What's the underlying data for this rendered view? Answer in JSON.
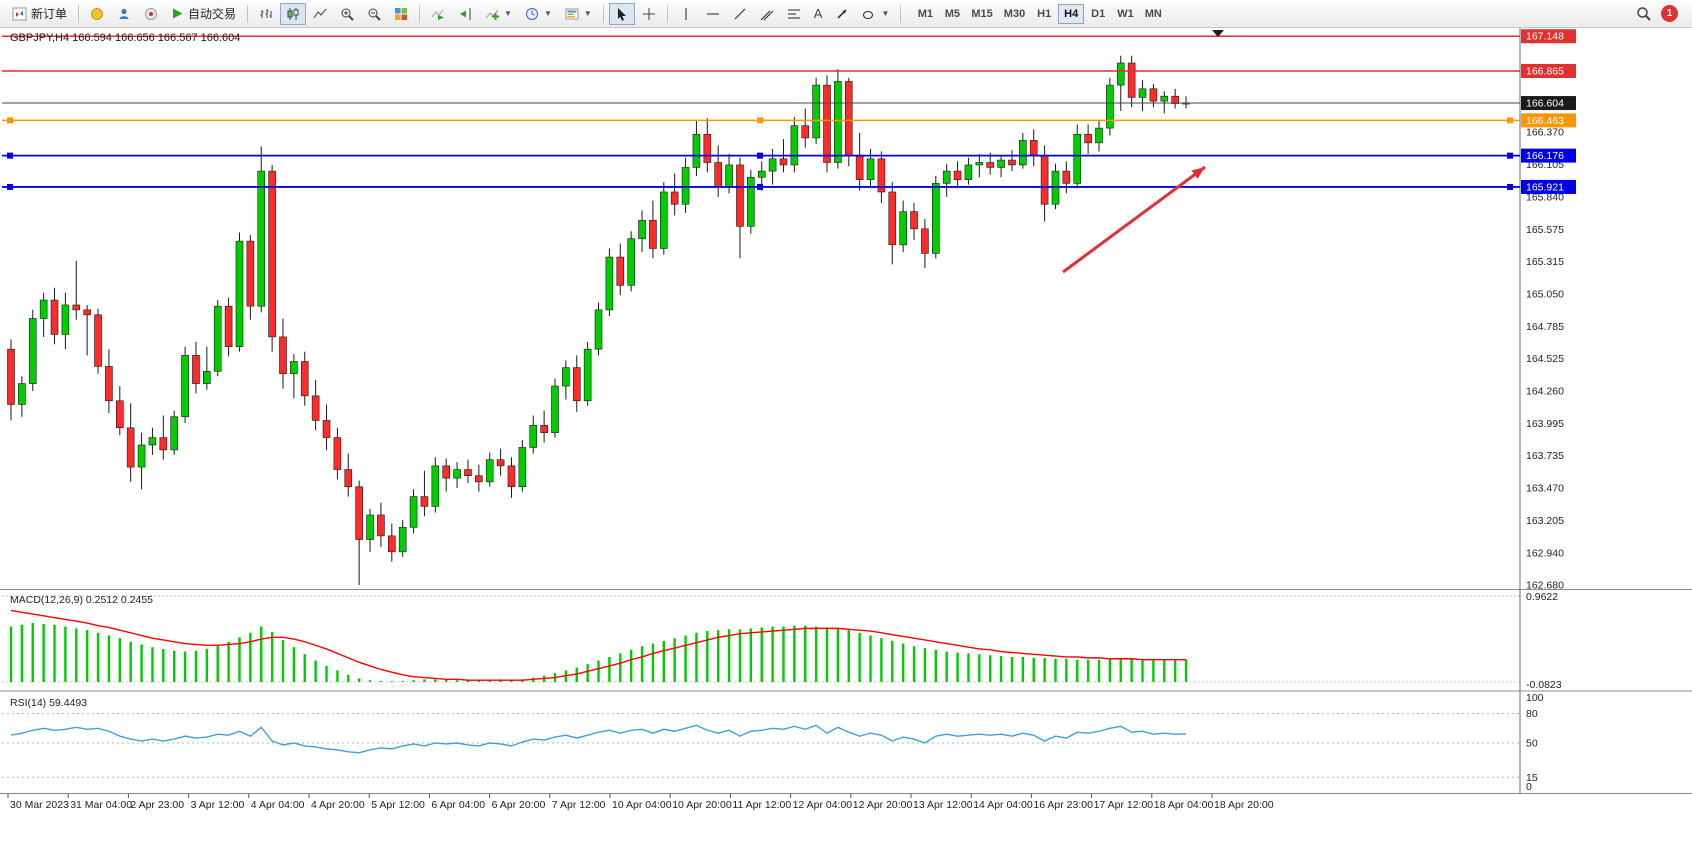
{
  "toolbar": {
    "new_order": "新订单",
    "autotrading": "自动交易",
    "timeframes": [
      "M1",
      "M5",
      "M15",
      "M30",
      "H1",
      "H4",
      "D1",
      "W1",
      "MN"
    ],
    "active_timeframe": "H4",
    "notification_count": "1"
  },
  "colors": {
    "up": "#00CE00",
    "down": "#FF2B2B",
    "candle_outline": "#1a1a1a",
    "macd_bar": "#00CC00",
    "macd_signal": "#FF0000",
    "rsi_line": "#3E9FDF",
    "line_red": "#E03131",
    "line_blue": "#0000E8",
    "line_orange": "#FF9500",
    "current_price": "#444444"
  },
  "chart_data": {
    "type": "candlestick",
    "symbol": "GBPJPY",
    "timeframe": "H4",
    "symbol_title": "GBPJPY,H4 166.594 166.656 166.567 166.604",
    "ohlc": {
      "open": "166.594",
      "high": "166.656",
      "low": "166.567",
      "close": "166.604"
    },
    "price_axis": [
      {
        "label": "166.370",
        "price": 166.37
      },
      {
        "label": "166.105",
        "price": 166.105
      },
      {
        "label": "165.840",
        "price": 165.84
      },
      {
        "label": "165.575",
        "price": 165.575
      },
      {
        "label": "165.315",
        "price": 165.315
      },
      {
        "label": "165.050",
        "price": 165.05
      },
      {
        "label": "164.785",
        "price": 164.785
      },
      {
        "label": "164.525",
        "price": 164.525
      },
      {
        "label": "164.260",
        "price": 164.26
      },
      {
        "label": "163.995",
        "price": 163.995
      },
      {
        "label": "163.735",
        "price": 163.735
      },
      {
        "label": "163.470",
        "price": 163.47
      },
      {
        "label": "163.205",
        "price": 163.205
      },
      {
        "label": "162.940",
        "price": 162.94
      },
      {
        "label": "162.680",
        "price": 162.68
      }
    ],
    "badges": [
      {
        "label": "167.148",
        "price": 167.148,
        "bg": "#E03131"
      },
      {
        "label": "166.865",
        "price": 166.865,
        "bg": "#E03131"
      },
      {
        "label": "166.604",
        "price": 166.604,
        "bg": "#1B1B1B"
      },
      {
        "label": "166.463",
        "price": 166.463,
        "bg": "#FF9500"
      },
      {
        "label": "166.176",
        "price": 166.176,
        "bg": "#0000E8"
      },
      {
        "label": "165.921",
        "price": 165.921,
        "bg": "#0000E8"
      }
    ],
    "hlines": [
      {
        "label": "167.148",
        "price": 167.148,
        "color": "#E03131",
        "width": 1.6,
        "handles": false
      },
      {
        "label": "166.865",
        "price": 166.865,
        "color": "#E03131",
        "width": 1.6,
        "handles": false
      },
      {
        "label": "166.604",
        "price": 166.604,
        "color": "#444444",
        "width": 1,
        "handles": false
      },
      {
        "label": "166.463",
        "price": 166.463,
        "color": "#FF9500",
        "width": 1.6,
        "handles": true
      },
      {
        "label": "166.176",
        "price": 166.176,
        "color": "#0000E8",
        "width": 1.8,
        "handles": true
      },
      {
        "label": "165.921",
        "price": 165.921,
        "color": "#0000E8",
        "width": 1.8,
        "handles": true
      }
    ],
    "time_labels": [
      "30 Mar 2023",
      "31 Mar 04:00",
      "2 Apr 23:00",
      "3 Apr 12:00",
      "4 Apr 04:00",
      "4 Apr 20:00",
      "5 Apr 12:00",
      "6 Apr 04:00",
      "6 Apr 20:00",
      "7 Apr 12:00",
      "10 Apr 04:00",
      "10 Apr 20:00",
      "11 Apr 12:00",
      "12 Apr 04:00",
      "12 Apr 20:00",
      "13 Apr 12:00",
      "14 Apr 04:00",
      "16 Apr 23:00",
      "17 Apr 12:00",
      "18 Apr 04:00",
      "18 Apr 20:00"
    ],
    "candles": [
      [
        164.6,
        164.68,
        164.02,
        164.15
      ],
      [
        164.15,
        164.38,
        164.05,
        164.32
      ],
      [
        164.32,
        164.92,
        164.26,
        164.85
      ],
      [
        164.85,
        165.06,
        164.7,
        165.0
      ],
      [
        165.0,
        165.1,
        164.64,
        164.72
      ],
      [
        164.72,
        165.06,
        164.6,
        164.96
      ],
      [
        164.96,
        165.32,
        164.84,
        164.92
      ],
      [
        164.92,
        164.96,
        164.55,
        164.88
      ],
      [
        164.88,
        164.93,
        164.4,
        164.46
      ],
      [
        164.46,
        164.6,
        164.08,
        164.18
      ],
      [
        164.18,
        164.3,
        163.9,
        163.96
      ],
      [
        163.96,
        164.16,
        163.52,
        163.64
      ],
      [
        163.64,
        163.92,
        163.46,
        163.82
      ],
      [
        163.82,
        163.96,
        163.74,
        163.88
      ],
      [
        163.88,
        164.06,
        163.7,
        163.78
      ],
      [
        163.78,
        164.1,
        163.74,
        164.05
      ],
      [
        164.05,
        164.62,
        164.0,
        164.55
      ],
      [
        164.55,
        164.66,
        164.24,
        164.32
      ],
      [
        164.32,
        164.62,
        164.27,
        164.42
      ],
      [
        164.42,
        165.0,
        164.38,
        164.95
      ],
      [
        164.95,
        165.02,
        164.54,
        164.62
      ],
      [
        164.62,
        165.55,
        164.58,
        165.48
      ],
      [
        165.48,
        165.53,
        164.84,
        164.95
      ],
      [
        164.95,
        166.25,
        164.9,
        166.05
      ],
      [
        166.05,
        166.1,
        164.58,
        164.7
      ],
      [
        164.7,
        164.85,
        164.28,
        164.4
      ],
      [
        164.4,
        164.56,
        164.2,
        164.5
      ],
      [
        164.5,
        164.58,
        164.14,
        164.22
      ],
      [
        164.22,
        164.35,
        163.94,
        164.02
      ],
      [
        164.02,
        164.15,
        163.78,
        163.88
      ],
      [
        163.88,
        163.96,
        163.54,
        163.62
      ],
      [
        163.62,
        163.75,
        163.4,
        163.48
      ],
      [
        163.48,
        163.53,
        162.68,
        163.05
      ],
      [
        163.05,
        163.3,
        162.95,
        163.25
      ],
      [
        163.25,
        163.35,
        162.99,
        163.08
      ],
      [
        163.08,
        163.18,
        162.87,
        162.95
      ],
      [
        162.95,
        163.21,
        162.91,
        163.15
      ],
      [
        163.15,
        163.46,
        163.1,
        163.4
      ],
      [
        163.4,
        163.61,
        163.24,
        163.32
      ],
      [
        163.32,
        163.72,
        163.27,
        163.65
      ],
      [
        163.65,
        163.71,
        163.44,
        163.55
      ],
      [
        163.55,
        163.68,
        163.47,
        163.62
      ],
      [
        163.62,
        163.7,
        163.51,
        163.57
      ],
      [
        163.57,
        163.66,
        163.44,
        163.52
      ],
      [
        163.52,
        163.76,
        163.48,
        163.7
      ],
      [
        163.7,
        163.79,
        163.57,
        163.65
      ],
      [
        163.65,
        163.72,
        163.39,
        163.48
      ],
      [
        163.48,
        163.86,
        163.44,
        163.8
      ],
      [
        163.8,
        164.06,
        163.75,
        163.98
      ],
      [
        163.98,
        164.1,
        163.84,
        163.92
      ],
      [
        163.92,
        164.36,
        163.88,
        164.3
      ],
      [
        164.3,
        164.51,
        164.19,
        164.45
      ],
      [
        164.45,
        164.55,
        164.09,
        164.18
      ],
      [
        164.18,
        164.66,
        164.14,
        164.6
      ],
      [
        164.6,
        164.98,
        164.55,
        164.92
      ],
      [
        164.92,
        165.42,
        164.87,
        165.35
      ],
      [
        165.35,
        165.46,
        165.04,
        165.12
      ],
      [
        165.12,
        165.56,
        165.07,
        165.5
      ],
      [
        165.5,
        165.73,
        165.39,
        165.65
      ],
      [
        165.65,
        165.81,
        165.34,
        165.42
      ],
      [
        165.42,
        165.96,
        165.37,
        165.88
      ],
      [
        165.88,
        166.03,
        165.69,
        165.78
      ],
      [
        165.78,
        166.16,
        165.71,
        166.08
      ],
      [
        166.08,
        166.46,
        166.01,
        166.35
      ],
      [
        166.35,
        166.48,
        166.04,
        166.12
      ],
      [
        166.12,
        166.26,
        165.84,
        165.92
      ],
      [
        165.92,
        166.19,
        165.87,
        166.1
      ],
      [
        166.1,
        166.16,
        165.34,
        165.6
      ],
      [
        165.6,
        166.06,
        165.54,
        166.0
      ],
      [
        166.0,
        166.13,
        165.89,
        166.05
      ],
      [
        166.05,
        166.23,
        165.94,
        166.15
      ],
      [
        166.15,
        166.31,
        166.04,
        166.1
      ],
      [
        166.1,
        166.49,
        166.04,
        166.42
      ],
      [
        166.42,
        166.56,
        166.24,
        166.32
      ],
      [
        166.32,
        166.81,
        166.27,
        166.75
      ],
      [
        166.75,
        166.83,
        166.04,
        166.12
      ],
      [
        166.12,
        166.88,
        166.07,
        166.78
      ],
      [
        166.78,
        166.81,
        166.09,
        166.18
      ],
      [
        166.18,
        166.36,
        165.89,
        165.98
      ],
      [
        165.98,
        166.23,
        165.91,
        166.15
      ],
      [
        166.15,
        166.21,
        165.79,
        165.88
      ],
      [
        165.88,
        165.96,
        165.29,
        165.45
      ],
      [
        165.45,
        165.81,
        165.39,
        165.72
      ],
      [
        165.72,
        165.79,
        165.49,
        165.58
      ],
      [
        165.58,
        165.66,
        165.26,
        165.38
      ],
      [
        165.38,
        166.01,
        165.34,
        165.95
      ],
      [
        165.95,
        166.11,
        165.84,
        166.05
      ],
      [
        166.05,
        166.13,
        165.91,
        165.98
      ],
      [
        165.98,
        166.16,
        165.94,
        166.1
      ],
      [
        166.1,
        166.19,
        166.0,
        166.12
      ],
      [
        166.12,
        166.2,
        166.02,
        166.08
      ],
      [
        166.08,
        166.18,
        166.0,
        166.14
      ],
      [
        166.14,
        166.22,
        166.05,
        166.1
      ],
      [
        166.1,
        166.36,
        166.07,
        166.3
      ],
      [
        166.3,
        166.39,
        166.09,
        166.18
      ],
      [
        166.18,
        166.26,
        165.64,
        165.78
      ],
      [
        165.78,
        166.11,
        165.74,
        166.05
      ],
      [
        166.05,
        166.13,
        165.87,
        165.95
      ],
      [
        165.95,
        166.43,
        165.91,
        166.35
      ],
      [
        166.35,
        166.43,
        166.19,
        166.28
      ],
      [
        166.28,
        166.46,
        166.21,
        166.4
      ],
      [
        166.4,
        166.81,
        166.34,
        166.75
      ],
      [
        166.75,
        166.99,
        166.54,
        166.93
      ],
      [
        166.93,
        166.99,
        166.57,
        166.65
      ],
      [
        166.65,
        166.79,
        166.54,
        166.72
      ],
      [
        166.72,
        166.76,
        166.57,
        166.62
      ],
      [
        166.62,
        166.7,
        166.52,
        166.66
      ],
      [
        166.66,
        166.72,
        166.56,
        166.6
      ],
      [
        166.6,
        166.66,
        166.56,
        166.604
      ]
    ],
    "macd": {
      "label": "MACD(12,26,9) 0.2512 0.2455",
      "params": "12,26,9",
      "values_display": [
        "0.2512",
        "0.2455"
      ],
      "scale_top": "0.9622",
      "scale_bottom": "-0.0823",
      "histogram": [
        0.62,
        0.64,
        0.66,
        0.65,
        0.64,
        0.62,
        0.6,
        0.58,
        0.55,
        0.52,
        0.49,
        0.45,
        0.42,
        0.39,
        0.37,
        0.35,
        0.34,
        0.35,
        0.37,
        0.41,
        0.45,
        0.5,
        0.55,
        0.62,
        0.56,
        0.47,
        0.39,
        0.31,
        0.24,
        0.18,
        0.13,
        0.08,
        0.04,
        0.02,
        0.01,
        0.01,
        0.01,
        0.02,
        0.03,
        0.03,
        0.03,
        0.02,
        0.02,
        0.02,
        0.02,
        0.03,
        0.02,
        0.03,
        0.05,
        0.07,
        0.1,
        0.13,
        0.16,
        0.2,
        0.24,
        0.28,
        0.32,
        0.36,
        0.4,
        0.43,
        0.46,
        0.49,
        0.52,
        0.55,
        0.57,
        0.58,
        0.59,
        0.59,
        0.6,
        0.61,
        0.62,
        0.62,
        0.63,
        0.63,
        0.62,
        0.61,
        0.6,
        0.58,
        0.55,
        0.52,
        0.49,
        0.46,
        0.43,
        0.4,
        0.38,
        0.36,
        0.34,
        0.33,
        0.32,
        0.31,
        0.3,
        0.29,
        0.28,
        0.28,
        0.27,
        0.27,
        0.26,
        0.26,
        0.25,
        0.25,
        0.25,
        0.26,
        0.27,
        0.27,
        0.26,
        0.26,
        0.25,
        0.25,
        0.25
      ],
      "signal": [
        0.8,
        0.78,
        0.76,
        0.74,
        0.72,
        0.7,
        0.68,
        0.66,
        0.63,
        0.61,
        0.58,
        0.55,
        0.52,
        0.49,
        0.47,
        0.45,
        0.43,
        0.42,
        0.41,
        0.41,
        0.42,
        0.43,
        0.45,
        0.48,
        0.5,
        0.5,
        0.48,
        0.45,
        0.41,
        0.37,
        0.32,
        0.27,
        0.22,
        0.18,
        0.14,
        0.11,
        0.08,
        0.06,
        0.05,
        0.04,
        0.03,
        0.03,
        0.02,
        0.02,
        0.02,
        0.02,
        0.02,
        0.02,
        0.03,
        0.04,
        0.05,
        0.07,
        0.09,
        0.12,
        0.15,
        0.18,
        0.21,
        0.25,
        0.28,
        0.32,
        0.35,
        0.38,
        0.41,
        0.44,
        0.47,
        0.5,
        0.52,
        0.54,
        0.55,
        0.56,
        0.57,
        0.58,
        0.59,
        0.6,
        0.6,
        0.6,
        0.6,
        0.59,
        0.58,
        0.57,
        0.55,
        0.53,
        0.51,
        0.49,
        0.47,
        0.45,
        0.43,
        0.41,
        0.39,
        0.37,
        0.36,
        0.34,
        0.33,
        0.32,
        0.31,
        0.3,
        0.29,
        0.28,
        0.28,
        0.27,
        0.27,
        0.26,
        0.26,
        0.26,
        0.25,
        0.25,
        0.25,
        0.25,
        0.25
      ]
    },
    "rsi": {
      "label": "RSI(14) 59.4493",
      "value_display": "59.4493",
      "levels": [
        80,
        50,
        15
      ],
      "scale": [
        {
          "v": 100,
          "label": "100"
        },
        {
          "v": 80,
          "label": "80"
        },
        {
          "v": 50,
          "label": "50"
        },
        {
          "v": 15,
          "label": "15"
        },
        {
          "v": 0,
          "label": "0"
        }
      ],
      "values": [
        58,
        60,
        63,
        65,
        63,
        64,
        66,
        64,
        65,
        62,
        57,
        54,
        52,
        54,
        52,
        54,
        57,
        55,
        56,
        59,
        58,
        62,
        57,
        66,
        52,
        48,
        50,
        47,
        46,
        44,
        43,
        41,
        40,
        43,
        45,
        44,
        47,
        49,
        47,
        50,
        49,
        50,
        48,
        47,
        50,
        49,
        47,
        51,
        54,
        53,
        56,
        58,
        55,
        58,
        61,
        63,
        60,
        63,
        64,
        60,
        64,
        62,
        65,
        68,
        63,
        60,
        63,
        57,
        62,
        63,
        65,
        64,
        67,
        64,
        68,
        60,
        66,
        61,
        57,
        60,
        58,
        52,
        56,
        54,
        50,
        57,
        59,
        57,
        58,
        59,
        58,
        59,
        57,
        60,
        58,
        52,
        57,
        55,
        61,
        60,
        62,
        65,
        67,
        61,
        62,
        59,
        60,
        59,
        59.4
      ]
    },
    "annotation_arrow": {
      "from": [
        1063,
        244
      ],
      "to": [
        1205,
        139
      ],
      "color": "#E03131"
    }
  }
}
